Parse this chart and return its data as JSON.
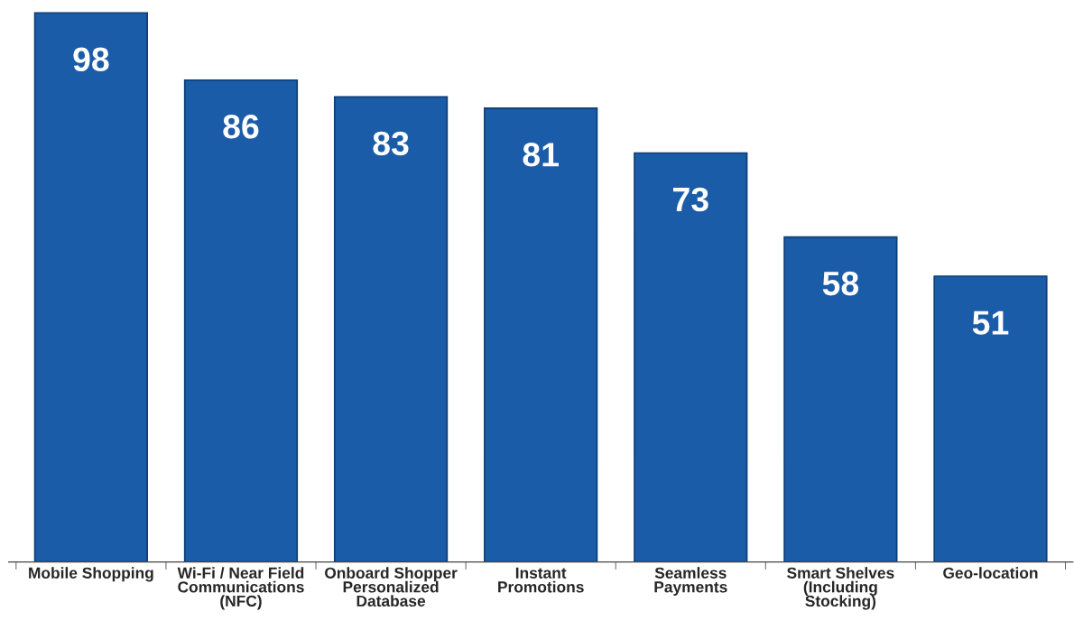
{
  "chart_data": {
    "type": "bar",
    "categories": [
      "Mobile Shopping",
      "Wi-Fi / Near Field\nCommunications\n(NFC)",
      "Onboard Shopper\nPersonalized\nDatabase",
      "Instant\nPromotions",
      "Seamless\nPayments",
      "Smart Shelves\n(Including\nStocking)",
      "Geo-location"
    ],
    "values": [
      98,
      86,
      83,
      81,
      73,
      58,
      51
    ],
    "color": "#1b5ca8",
    "data_labels": true
  }
}
